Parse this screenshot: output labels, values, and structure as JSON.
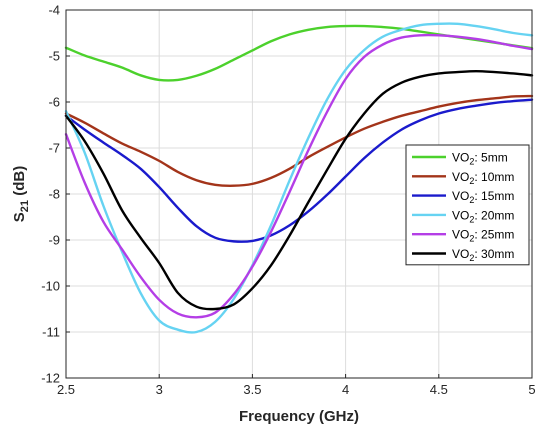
{
  "chart_data": {
    "type": "line",
    "xlabel": "Frequency (GHz)",
    "ylabel_main": "S",
    "ylabel_sub": "21",
    "ylabel_suffix": " (dB)",
    "xlim": [
      2.5,
      5
    ],
    "ylim": [
      -12,
      -4
    ],
    "xticks": [
      2.5,
      3,
      3.5,
      4,
      4.5,
      5
    ],
    "yticks": [
      -12,
      -11,
      -10,
      -9,
      -8,
      -7,
      -6,
      -5,
      -4
    ],
    "grid": true,
    "legend_position": "right",
    "legend_prefix": "VO",
    "legend_sub": "2",
    "series": [
      {
        "name": "5mm",
        "color": "#4CD12C",
        "x": [
          2.5,
          2.6,
          2.7,
          2.8,
          2.9,
          3.0,
          3.1,
          3.2,
          3.3,
          3.4,
          3.5,
          3.6,
          3.7,
          3.8,
          3.9,
          4.0,
          4.1,
          4.2,
          4.3,
          4.4,
          4.5,
          4.6,
          4.7,
          4.8,
          4.9,
          5.0
        ],
        "y": [
          -4.82,
          -4.99,
          -5.12,
          -5.25,
          -5.42,
          -5.52,
          -5.52,
          -5.43,
          -5.28,
          -5.08,
          -4.88,
          -4.68,
          -4.53,
          -4.43,
          -4.37,
          -4.35,
          -4.35,
          -4.37,
          -4.41,
          -4.47,
          -4.53,
          -4.59,
          -4.65,
          -4.71,
          -4.77,
          -4.83
        ]
      },
      {
        "name": "10mm",
        "color": "#A3341A",
        "x": [
          2.5,
          2.6,
          2.7,
          2.8,
          2.9,
          3.0,
          3.1,
          3.2,
          3.3,
          3.4,
          3.5,
          3.6,
          3.7,
          3.8,
          3.9,
          4.0,
          4.1,
          4.2,
          4.3,
          4.4,
          4.5,
          4.6,
          4.7,
          4.8,
          4.9,
          5.0
        ],
        "y": [
          -6.25,
          -6.45,
          -6.68,
          -6.9,
          -7.08,
          -7.28,
          -7.52,
          -7.7,
          -7.8,
          -7.82,
          -7.78,
          -7.65,
          -7.45,
          -7.2,
          -6.98,
          -6.77,
          -6.58,
          -6.43,
          -6.3,
          -6.2,
          -6.1,
          -6.02,
          -5.96,
          -5.92,
          -5.88,
          -5.87
        ]
      },
      {
        "name": "15mm",
        "color": "#1A1ACC",
        "x": [
          2.5,
          2.6,
          2.7,
          2.8,
          2.9,
          3.0,
          3.1,
          3.2,
          3.3,
          3.4,
          3.5,
          3.6,
          3.7,
          3.8,
          3.9,
          4.0,
          4.1,
          4.2,
          4.3,
          4.4,
          4.5,
          4.6,
          4.7,
          4.8,
          4.9,
          5.0
        ],
        "y": [
          -6.3,
          -6.6,
          -6.88,
          -7.15,
          -7.45,
          -7.85,
          -8.3,
          -8.7,
          -8.95,
          -9.03,
          -9.02,
          -8.9,
          -8.68,
          -8.38,
          -8.02,
          -7.62,
          -7.22,
          -6.88,
          -6.6,
          -6.4,
          -6.25,
          -6.15,
          -6.08,
          -6.02,
          -5.98,
          -5.95
        ]
      },
      {
        "name": "20mm",
        "color": "#66D3F2",
        "x": [
          2.5,
          2.6,
          2.7,
          2.8,
          2.9,
          3.0,
          3.1,
          3.2,
          3.3,
          3.4,
          3.5,
          3.6,
          3.7,
          3.8,
          3.9,
          4.0,
          4.1,
          4.2,
          4.3,
          4.4,
          4.5,
          4.6,
          4.7,
          4.8,
          4.9,
          5.0
        ],
        "y": [
          -6.2,
          -7.1,
          -8.25,
          -9.25,
          -10.15,
          -10.75,
          -10.95,
          -11.0,
          -10.78,
          -10.28,
          -9.55,
          -8.68,
          -7.7,
          -6.78,
          -5.95,
          -5.3,
          -4.87,
          -4.58,
          -4.43,
          -4.33,
          -4.3,
          -4.3,
          -4.35,
          -4.42,
          -4.5,
          -4.55
        ]
      },
      {
        "name": "25mm",
        "color": "#B43EE6",
        "x": [
          2.5,
          2.6,
          2.7,
          2.8,
          2.9,
          3.0,
          3.1,
          3.2,
          3.3,
          3.4,
          3.5,
          3.6,
          3.7,
          3.8,
          3.9,
          4.0,
          4.1,
          4.2,
          4.3,
          4.4,
          4.5,
          4.6,
          4.7,
          4.8,
          4.9,
          5.0
        ],
        "y": [
          -6.7,
          -7.75,
          -8.6,
          -9.2,
          -9.8,
          -10.3,
          -10.6,
          -10.68,
          -10.58,
          -10.18,
          -9.58,
          -8.82,
          -7.95,
          -7.05,
          -6.22,
          -5.5,
          -5.02,
          -4.75,
          -4.6,
          -4.55,
          -4.55,
          -4.58,
          -4.63,
          -4.7,
          -4.78,
          -4.85
        ]
      },
      {
        "name": "30mm",
        "color": "#000000",
        "x": [
          2.5,
          2.6,
          2.7,
          2.8,
          2.9,
          3.0,
          3.1,
          3.2,
          3.3,
          3.4,
          3.5,
          3.6,
          3.7,
          3.8,
          3.9,
          4.0,
          4.1,
          4.2,
          4.3,
          4.4,
          4.5,
          4.6,
          4.7,
          4.8,
          4.9,
          5.0
        ],
        "y": [
          -6.3,
          -6.85,
          -7.55,
          -8.35,
          -8.95,
          -9.5,
          -10.15,
          -10.45,
          -10.5,
          -10.4,
          -10.05,
          -9.55,
          -8.9,
          -8.18,
          -7.48,
          -6.8,
          -6.25,
          -5.82,
          -5.58,
          -5.45,
          -5.38,
          -5.35,
          -5.33,
          -5.35,
          -5.38,
          -5.42
        ]
      }
    ]
  }
}
